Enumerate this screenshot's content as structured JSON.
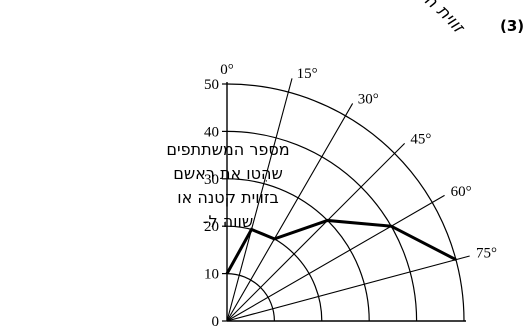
{
  "question_number": "(3)",
  "side_label": [
    "מספר המשתתפים",
    "שהִטו את ראשם",
    "בזווית קטנה או",
    "שווה ל-"
  ],
  "chart_data": {
    "type": "polar-line",
    "title": "זווית הטיית הראש",
    "radial_axis": {
      "ylim": [
        0,
        50
      ],
      "ticks": [
        0,
        10,
        20,
        30,
        40,
        50
      ]
    },
    "angular_axis": {
      "unit": "°",
      "ticks": [
        0,
        15,
        30,
        45,
        60,
        75
      ],
      "range": [
        0,
        90
      ],
      "zero_direction": "up",
      "clockwise": true
    },
    "grid": true,
    "points": [
      {
        "angle": 0,
        "value": 10
      },
      {
        "angle": 15,
        "value": 20
      },
      {
        "angle": 30,
        "value": 20
      },
      {
        "angle": 45,
        "value": 30
      },
      {
        "angle": 60,
        "value": 40
      },
      {
        "angle": 75,
        "value": 50
      }
    ]
  }
}
